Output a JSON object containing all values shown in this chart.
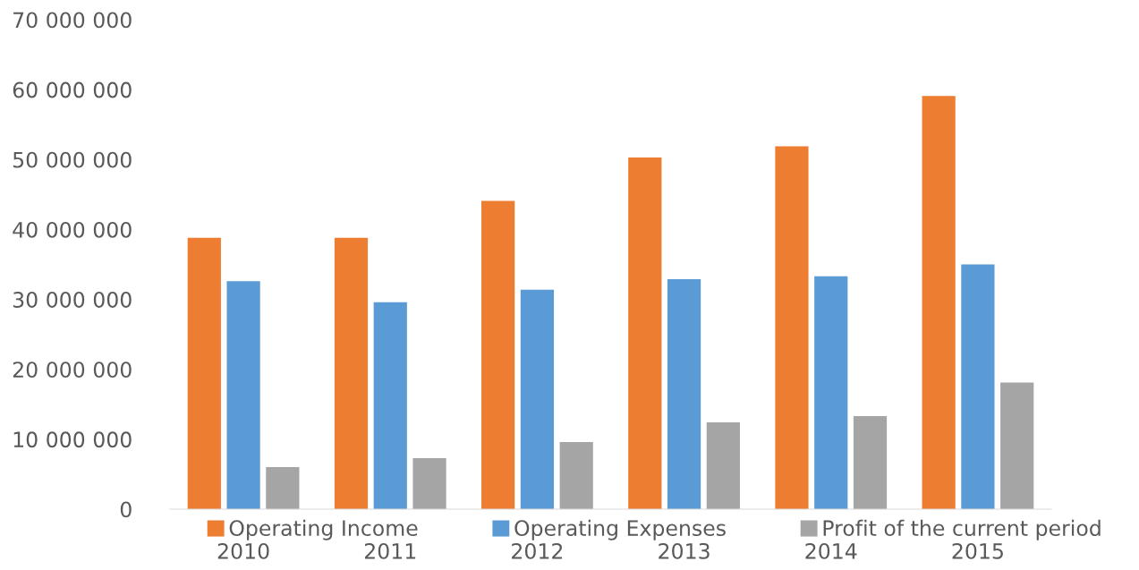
{
  "chart_data": {
    "type": "bar",
    "categories": [
      "2010",
      "2011",
      "2012",
      "2013",
      "2014",
      "2015"
    ],
    "series": [
      {
        "name": "Operating Income",
        "color": "#ed7d31",
        "values": [
          38800000,
          38800000,
          44100000,
          50300000,
          51900000,
          59100000
        ]
      },
      {
        "name": "Operating Expenses",
        "color": "#5b9bd5",
        "values": [
          32600000,
          29600000,
          31400000,
          32900000,
          33300000,
          35000000
        ]
      },
      {
        "name": "Profit of the current period",
        "color": "#a5a5a5",
        "values": [
          6000000,
          7300000,
          9600000,
          12400000,
          13300000,
          18100000
        ]
      }
    ],
    "ylim": [
      0,
      70000000
    ],
    "yticks": [
      0,
      {
        "value": 10000000,
        "label": "10 000 000"
      },
      {
        "value": 20000000,
        "label": "20 000 000"
      },
      {
        "value": 30000000,
        "label": "30 000 000"
      },
      {
        "value": 40000000,
        "label": "40 000 000"
      },
      {
        "value": 50000000,
        "label": "50 000 000"
      },
      {
        "value": 60000000,
        "label": "60 000 000"
      },
      {
        "value": 70000000,
        "label": "70 000 000"
      }
    ],
    "grid": false,
    "legend": "bottom"
  }
}
